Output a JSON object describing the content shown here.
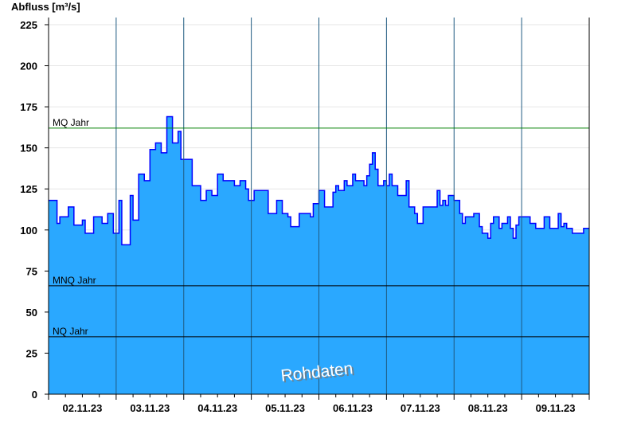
{
  "chart_data": {
    "type": "area",
    "ylabel": "Abfluss [m³/s]",
    "ylim": [
      0,
      230
    ],
    "yticks": [
      0,
      25,
      50,
      75,
      100,
      125,
      150,
      175,
      200,
      225
    ],
    "xlim": [
      "2023-11-02T00:00",
      "2023-11-10T00:00"
    ],
    "xtick_labels": [
      "02.11.23",
      "03.11.23",
      "04.11.23",
      "05.11.23",
      "06.11.23",
      "07.11.23",
      "08.11.23",
      "09.11.23"
    ],
    "grid": true,
    "watermark": "Rohdaten",
    "colors": {
      "fill": "#2aa8ff",
      "line": "#0000ff",
      "mq": "#008000",
      "ref": "#000000",
      "day_line": "#1f5a80",
      "grid": "#e6e6e6"
    },
    "reference_lines": [
      {
        "label": "MQ Jahr",
        "value": 162
      },
      {
        "label": "MNQ Jahr",
        "value": 66
      },
      {
        "label": "NQ Jahr",
        "value": 35
      }
    ],
    "series": [
      {
        "points": [
          [
            "2023-11-02T00:00",
            118
          ],
          [
            "2023-11-02T03:00",
            104
          ],
          [
            "2023-11-02T04:00",
            108
          ],
          [
            "2023-11-02T07:00",
            114
          ],
          [
            "2023-11-02T09:00",
            103
          ],
          [
            "2023-11-02T12:00",
            106
          ],
          [
            "2023-11-02T13:00",
            98
          ],
          [
            "2023-11-02T16:00",
            108
          ],
          [
            "2023-11-02T19:00",
            104
          ],
          [
            "2023-11-02T21:00",
            110
          ],
          [
            "2023-11-02T23:00",
            98
          ],
          [
            "2023-11-03T01:00",
            118
          ],
          [
            "2023-11-03T02:00",
            91
          ],
          [
            "2023-11-03T05:00",
            121
          ],
          [
            "2023-11-03T06:00",
            106
          ],
          [
            "2023-11-03T08:00",
            134
          ],
          [
            "2023-11-03T10:00",
            130
          ],
          [
            "2023-11-03T12:00",
            149
          ],
          [
            "2023-11-03T14:00",
            153
          ],
          [
            "2023-11-03T16:00",
            147
          ],
          [
            "2023-11-03T18:00",
            169
          ],
          [
            "2023-11-03T20:00",
            153
          ],
          [
            "2023-11-03T22:00",
            160
          ],
          [
            "2023-11-03T23:00",
            143
          ],
          [
            "2023-11-04T01:00",
            143
          ],
          [
            "2023-11-04T03:00",
            127
          ],
          [
            "2023-11-04T05:00",
            127
          ],
          [
            "2023-11-04T06:00",
            118
          ],
          [
            "2023-11-04T08:00",
            124
          ],
          [
            "2023-11-04T10:00",
            121
          ],
          [
            "2023-11-04T12:00",
            134
          ],
          [
            "2023-11-04T14:00",
            130
          ],
          [
            "2023-11-04T16:00",
            130
          ],
          [
            "2023-11-04T18:00",
            127
          ],
          [
            "2023-11-04T20:00",
            130
          ],
          [
            "2023-11-04T22:00",
            125
          ],
          [
            "2023-11-04T23:00",
            118
          ],
          [
            "2023-11-05T01:00",
            124
          ],
          [
            "2023-11-05T05:00",
            124
          ],
          [
            "2023-11-05T06:00",
            110
          ],
          [
            "2023-11-05T07:00",
            110
          ],
          [
            "2023-11-05T09:00",
            118
          ],
          [
            "2023-11-05T10:00",
            118
          ],
          [
            "2023-11-05T11:00",
            110
          ],
          [
            "2023-11-05T13:00",
            108
          ],
          [
            "2023-11-05T14:00",
            102
          ],
          [
            "2023-11-05T15:00",
            102
          ],
          [
            "2023-11-05T17:00",
            110
          ],
          [
            "2023-11-05T19:00",
            110
          ],
          [
            "2023-11-05T21:00",
            108
          ],
          [
            "2023-11-05T22:00",
            116
          ],
          [
            "2023-11-06T00:00",
            124
          ],
          [
            "2023-11-06T01:00",
            124
          ],
          [
            "2023-11-06T02:00",
            114
          ],
          [
            "2023-11-06T03:00",
            114
          ],
          [
            "2023-11-06T05:00",
            123
          ],
          [
            "2023-11-06T06:00",
            127
          ],
          [
            "2023-11-06T07:00",
            124
          ],
          [
            "2023-11-06T08:00",
            124
          ],
          [
            "2023-11-06T09:00",
            130
          ],
          [
            "2023-11-06T10:00",
            127
          ],
          [
            "2023-11-06T12:00",
            134
          ],
          [
            "2023-11-06T13:00",
            130
          ],
          [
            "2023-11-06T15:00",
            130
          ],
          [
            "2023-11-06T16:00",
            127
          ],
          [
            "2023-11-06T17:00",
            133
          ],
          [
            "2023-11-06T18:00",
            140
          ],
          [
            "2023-11-06T19:00",
            147
          ],
          [
            "2023-11-06T20:00",
            137
          ],
          [
            "2023-11-06T21:00",
            127
          ],
          [
            "2023-11-06T23:00",
            130
          ],
          [
            "2023-11-07T00:00",
            127
          ],
          [
            "2023-11-07T01:00",
            134
          ],
          [
            "2023-11-07T02:00",
            127
          ],
          [
            "2023-11-07T04:00",
            121
          ],
          [
            "2023-11-07T06:00",
            121
          ],
          [
            "2023-11-07T07:00",
            130
          ],
          [
            "2023-11-07T08:00",
            114
          ],
          [
            "2023-11-07T10:00",
            110
          ],
          [
            "2023-11-07T11:00",
            104
          ],
          [
            "2023-11-07T13:00",
            114
          ],
          [
            "2023-11-07T16:00",
            114
          ],
          [
            "2023-11-07T18:00",
            124
          ],
          [
            "2023-11-07T19:00",
            115
          ],
          [
            "2023-11-07T20:00",
            118
          ],
          [
            "2023-11-07T21:00",
            115
          ],
          [
            "2023-11-07T22:00",
            121
          ],
          [
            "2023-11-08T00:00",
            118
          ],
          [
            "2023-11-08T02:00",
            110
          ],
          [
            "2023-11-08T03:00",
            104
          ],
          [
            "2023-11-08T04:00",
            108
          ],
          [
            "2023-11-08T06:00",
            108
          ],
          [
            "2023-11-08T07:00",
            110
          ],
          [
            "2023-11-08T09:00",
            102
          ],
          [
            "2023-11-08T10:00",
            98
          ],
          [
            "2023-11-08T12:00",
            95
          ],
          [
            "2023-11-08T13:00",
            104
          ],
          [
            "2023-11-08T14:00",
            108
          ],
          [
            "2023-11-08T15:00",
            108
          ],
          [
            "2023-11-08T16:00",
            101
          ],
          [
            "2023-11-08T17:00",
            104
          ],
          [
            "2023-11-08T18:00",
            104
          ],
          [
            "2023-11-08T19:00",
            108
          ],
          [
            "2023-11-08T20:00",
            101
          ],
          [
            "2023-11-08T21:00",
            95
          ],
          [
            "2023-11-08T22:00",
            103
          ],
          [
            "2023-11-08T23:00",
            108
          ],
          [
            "2023-11-09T02:00",
            108
          ],
          [
            "2023-11-09T03:00",
            104
          ],
          [
            "2023-11-09T05:00",
            101
          ],
          [
            "2023-11-09T07:00",
            101
          ],
          [
            "2023-11-09T08:00",
            108
          ],
          [
            "2023-11-09T09:00",
            108
          ],
          [
            "2023-11-09T10:00",
            101
          ],
          [
            "2023-11-09T12:00",
            101
          ],
          [
            "2023-11-09T13:00",
            110
          ],
          [
            "2023-11-09T14:00",
            102
          ],
          [
            "2023-11-09T15:00",
            104
          ],
          [
            "2023-11-09T16:00",
            101
          ],
          [
            "2023-11-09T18:00",
            98
          ],
          [
            "2023-11-09T21:00",
            98
          ],
          [
            "2023-11-09T22:00",
            101
          ],
          [
            "2023-11-10T00:00",
            101
          ]
        ]
      }
    ]
  }
}
